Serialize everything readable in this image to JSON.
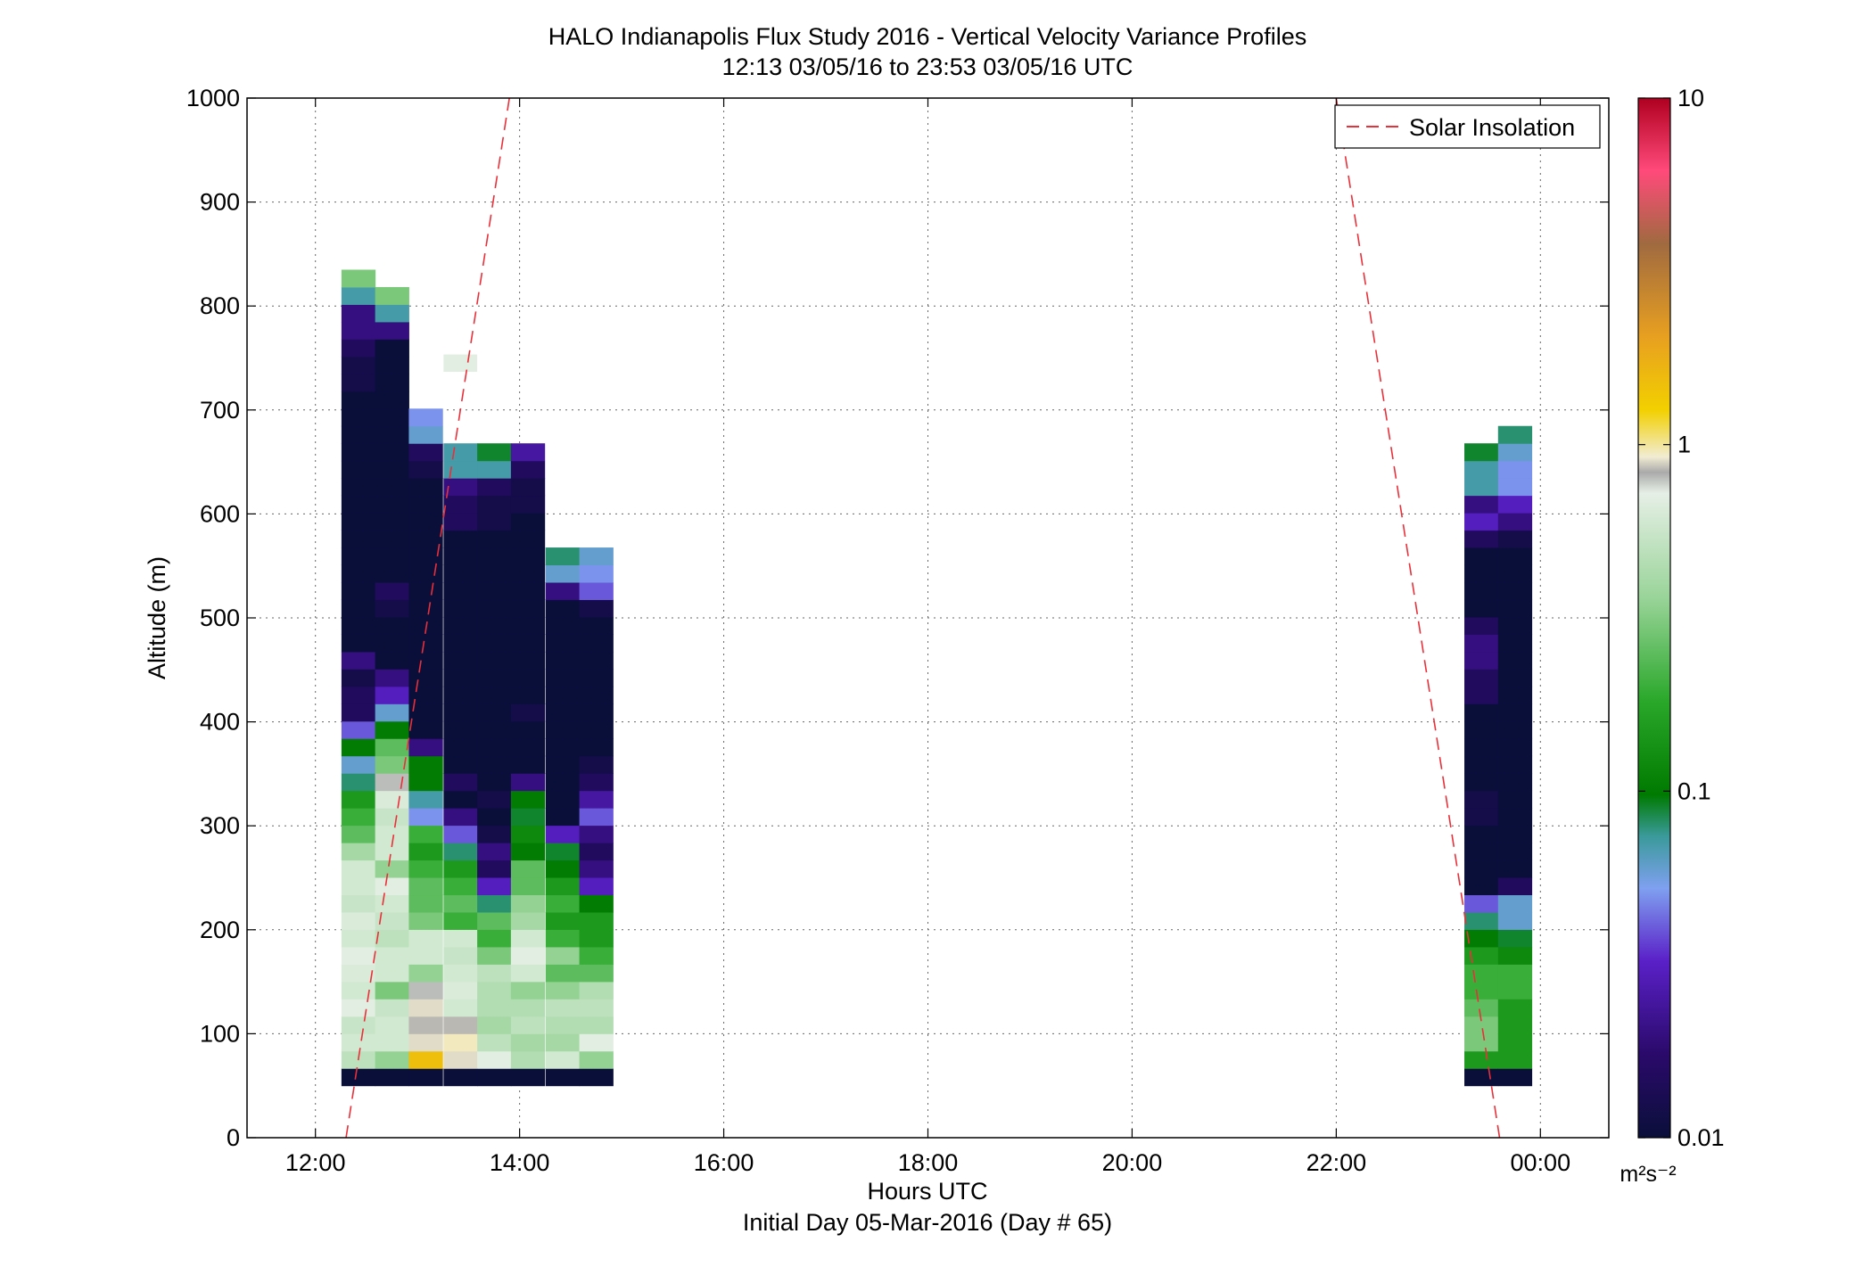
{
  "chart_data": {
    "type": "heatmap",
    "title": "HALO Indianapolis Flux Study 2016 - Vertical Velocity Variance Profiles",
    "subtitle": "12:13 03/05/16 to 23:53 03/05/16  UTC",
    "xlabel": "Hours UTC",
    "xlabel2": "Initial Day 05-Mar-2016 (Day # 65)",
    "ylabel": "Altitude (m)",
    "xlim": [
      11.33,
      24.67
    ],
    "ylim": [
      0,
      1000
    ],
    "x_ticks": [
      12,
      14,
      16,
      18,
      20,
      22,
      24
    ],
    "x_tick_labels": [
      "12:00",
      "14:00",
      "16:00",
      "18:00",
      "20:00",
      "22:00",
      "00:00"
    ],
    "y_ticks": [
      0,
      100,
      200,
      300,
      400,
      500,
      600,
      700,
      800,
      900,
      1000
    ],
    "y_tick_labels": [
      "0",
      "100",
      "200",
      "300",
      "400",
      "500",
      "600",
      "700",
      "800",
      "900",
      "1000"
    ],
    "grid": true,
    "legend": {
      "entries": [
        "Solar Insolation"
      ],
      "placement": "top-right",
      "color": "#e8303a"
    },
    "colorbar": {
      "scale": "log",
      "min": 0.01,
      "max": 10,
      "tick_labels": [
        "10",
        "1",
        "0.1",
        "0.01"
      ],
      "unit_label": "m²s⁻²"
    },
    "solar_insolation": [
      {
        "x": [
          12.3,
          13.9
        ],
        "y": [
          0,
          1000
        ]
      },
      {
        "x": [
          22.0,
          23.6
        ],
        "y": [
          1000,
          0
        ]
      }
    ],
    "cell_width_hours": 0.33,
    "cell_height_m": 16.7,
    "y_bin_start_m": 50,
    "columns": [
      {
        "x": 12.42,
        "values": [
          0.01,
          0.5,
          0.6,
          0.55,
          0.7,
          0.6,
          0.65,
          0.7,
          0.6,
          0.65,
          0.55,
          0.6,
          0.6,
          0.4,
          0.25,
          0.2,
          0.15,
          0.08,
          0.06,
          0.1,
          0.04,
          0.015,
          0.015,
          0.012,
          0.02,
          0.01,
          0.01,
          0.01,
          0.01,
          0.01,
          0.01,
          0.01,
          0.01,
          0.01,
          0.01,
          0.01,
          0.01,
          0.01,
          0.01,
          0.01,
          0.012,
          0.012,
          0.015,
          0.02,
          0.02,
          0.07,
          0.3
        ]
      },
      {
        "x": 12.75,
        "values": [
          0.01,
          0.35,
          0.6,
          0.6,
          0.55,
          0.3,
          0.6,
          0.6,
          0.5,
          0.55,
          0.6,
          0.7,
          0.35,
          0.6,
          0.6,
          0.55,
          0.65,
          0.8,
          0.3,
          0.25,
          0.1,
          0.06,
          0.03,
          0.02,
          0.01,
          0.01,
          0.01,
          0.012,
          0.015,
          0.01,
          0.01,
          0.01,
          0.01,
          0.01,
          0.01,
          0.01,
          0.01,
          0.01,
          0.01,
          0.01,
          0.01,
          0.01,
          0.01,
          0.02,
          0.07,
          0.3
        ]
      },
      {
        "x": 13.08,
        "values": [
          0.01,
          1.5,
          0.9,
          0.85,
          0.9,
          0.8,
          0.35,
          0.6,
          0.6,
          0.3,
          0.25,
          0.25,
          0.2,
          0.15,
          0.2,
          0.05,
          0.07,
          0.1,
          0.1,
          0.02,
          0.01,
          0.01,
          0.01,
          0.01,
          0.01,
          0.01,
          0.01,
          0.01,
          0.01,
          0.01,
          0.01,
          0.01,
          0.01,
          0.01,
          0.01,
          0.012,
          0.015,
          0.06,
          0.05
        ]
      },
      {
        "x": 13.42,
        "values": [
          0.01,
          0.9,
          0.95,
          0.85,
          0.6,
          0.65,
          0.6,
          0.55,
          0.6,
          0.2,
          0.25,
          0.2,
          0.15,
          0.08,
          0.04,
          0.02,
          0.01,
          0.015,
          0.01,
          0.01,
          0.01,
          0.01,
          0.01,
          0.01,
          0.01,
          0.01,
          0.01,
          0.01,
          0.01,
          0.01,
          0.01,
          0.01,
          0.015,
          0.015,
          0.02,
          0.07,
          0.07
        ]
      },
      {
        "x": 13.75,
        "values": [
          0.01,
          0.7,
          0.5,
          0.4,
          0.45,
          0.45,
          0.5,
          0.3,
          0.2,
          0.25,
          0.08,
          0.03,
          0.015,
          0.02,
          0.012,
          0.01,
          0.012,
          0.01,
          0.01,
          0.01,
          0.01,
          0.01,
          0.01,
          0.01,
          0.01,
          0.01,
          0.01,
          0.01,
          0.01,
          0.01,
          0.01,
          0.01,
          0.012,
          0.012,
          0.015,
          0.07,
          0.09
        ]
      },
      {
        "x": 14.08,
        "values": [
          0.01,
          0.45,
          0.4,
          0.5,
          0.45,
          0.35,
          0.6,
          0.7,
          0.6,
          0.4,
          0.35,
          0.25,
          0.25,
          0.1,
          0.12,
          0.09,
          0.1,
          0.02,
          0.01,
          0.01,
          0.01,
          0.012,
          0.01,
          0.01,
          0.01,
          0.01,
          0.01,
          0.01,
          0.01,
          0.01,
          0.01,
          0.01,
          0.01,
          0.012,
          0.012,
          0.015,
          0.025
        ]
      },
      {
        "x": 14.42,
        "values": [
          0.01,
          0.6,
          0.4,
          0.45,
          0.5,
          0.35,
          0.25,
          0.35,
          0.2,
          0.15,
          0.2,
          0.15,
          0.1,
          0.09,
          0.03,
          0.01,
          0.01,
          0.01,
          0.01,
          0.01,
          0.01,
          0.01,
          0.01,
          0.01,
          0.01,
          0.01,
          0.01,
          0.01,
          0.02,
          0.06,
          0.08
        ]
      },
      {
        "x": 14.75,
        "values": [
          0.01,
          0.35,
          0.7,
          0.45,
          0.5,
          0.45,
          0.25,
          0.2,
          0.15,
          0.15,
          0.1,
          0.03,
          0.02,
          0.015,
          0.02,
          0.04,
          0.025,
          0.015,
          0.012,
          0.01,
          0.01,
          0.01,
          0.01,
          0.01,
          0.01,
          0.01,
          0.01,
          0.012,
          0.04,
          0.05,
          0.06
        ]
      },
      {
        "x": 23.42,
        "values": [
          0.01,
          0.15,
          0.3,
          0.3,
          0.25,
          0.2,
          0.2,
          0.15,
          0.1,
          0.08,
          0.04,
          0.01,
          0.01,
          0.01,
          0.01,
          0.012,
          0.012,
          0.01,
          0.01,
          0.01,
          0.01,
          0.01,
          0.015,
          0.015,
          0.02,
          0.02,
          0.015,
          0.01,
          0.01,
          0.01,
          0.01,
          0.015,
          0.03,
          0.02,
          0.07,
          0.07,
          0.09
        ]
      },
      {
        "x": 23.75,
        "values": [
          0.01,
          0.15,
          0.15,
          0.15,
          0.15,
          0.2,
          0.2,
          0.12,
          0.09,
          0.06,
          0.06,
          0.015,
          0.01,
          0.01,
          0.01,
          0.01,
          0.01,
          0.01,
          0.01,
          0.01,
          0.01,
          0.01,
          0.01,
          0.01,
          0.01,
          0.01,
          0.01,
          0.01,
          0.01,
          0.01,
          0.01,
          0.012,
          0.02,
          0.03,
          0.05,
          0.05,
          0.06,
          0.08
        ]
      }
    ],
    "isolated_cells": [
      {
        "x": 13.42,
        "y": 745,
        "value": 0.7
      }
    ]
  }
}
